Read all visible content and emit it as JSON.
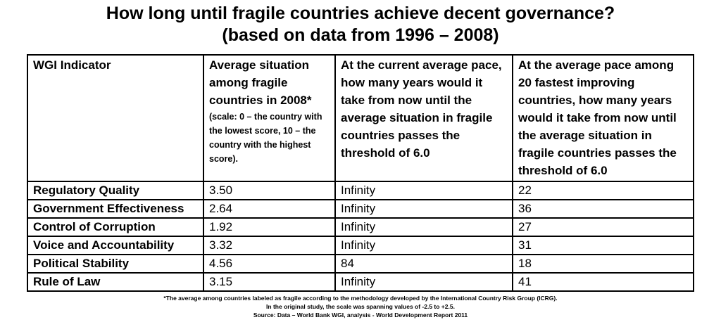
{
  "title": {
    "line1": "How long until fragile countries achieve decent governance?",
    "line2": "(based on data from 1996 – 2008)"
  },
  "table": {
    "headers": [
      {
        "text": "WGI Indicator",
        "note": ""
      },
      {
        "text": "Average situation among fragile countries in 2008*",
        "note": "(scale: 0 – the country with the lowest score, 10 – the country with the highest score)."
      },
      {
        "text": "At the current average pace, how many years would it take from now until the average situation in fragile countries passes the threshold of 6.0",
        "note": ""
      },
      {
        "text": "At the average pace among 20 fastest improving countries, how many years would it take from now until the average situation in fragile countries passes the threshold of 6.0",
        "note": ""
      }
    ],
    "rows": [
      {
        "indicator": "Regulatory Quality",
        "average": "3.50",
        "current_pace": "Infinity",
        "fastest_pace": "22"
      },
      {
        "indicator": "Government Effectiveness",
        "average": "2.64",
        "current_pace": "Infinity",
        "fastest_pace": "36"
      },
      {
        "indicator": "Control of Corruption",
        "average": "1.92",
        "current_pace": "Infinity",
        "fastest_pace": "27"
      },
      {
        "indicator": "Voice and Accountability",
        "average": "3.32",
        "current_pace": "Infinity",
        "fastest_pace": "31"
      },
      {
        "indicator": "Political Stability",
        "average": "4.56",
        "current_pace": "84",
        "fastest_pace": "18"
      },
      {
        "indicator": "Rule of Law",
        "average": "3.15",
        "current_pace": "Infinity",
        "fastest_pace": "41"
      }
    ]
  },
  "footnotes": {
    "line1": "*The average among countries labeled as fragile according to the methodology developed by the International Country Risk Group (ICRG).",
    "line2": "In the original study, the scale was spanning values of -2.5 to +2.5.",
    "source": "Source: Data – World Bank WGI, analysis - World Development Report 2011"
  }
}
